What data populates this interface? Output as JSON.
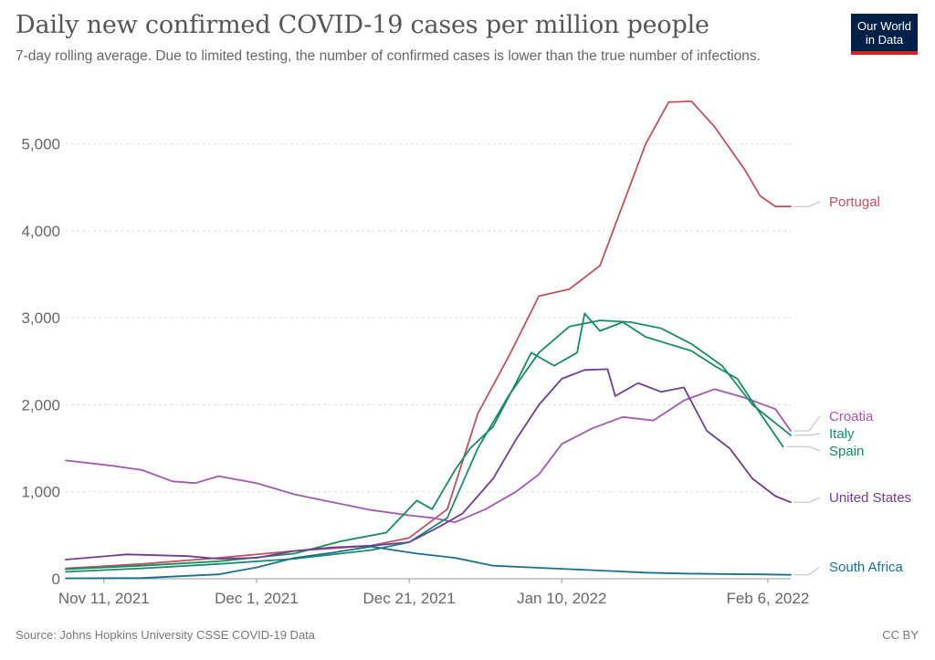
{
  "title": "Daily new confirmed COVID-19 cases per million people",
  "subtitle": "7-day rolling average. Due to limited testing, the number of confirmed cases is lower than the true number of infections.",
  "logo": {
    "line1": "Our World",
    "line2": "in Data",
    "bg": "#002147",
    "accent": "#ce261e"
  },
  "footer": {
    "source": "Source: Johns Hopkins University CSSE COVID-19 Data",
    "license": "CC BY"
  },
  "chart_data": {
    "type": "line",
    "x_unit": "date",
    "x_range": [
      "2021-11-06",
      "2022-02-09"
    ],
    "ylim": [
      0,
      5500
    ],
    "grid": true,
    "legend": "right, labels at line ends",
    "x_ticks": [
      {
        "date": "2021-11-11",
        "label": "Nov 11, 2021"
      },
      {
        "date": "2021-12-01",
        "label": "Dec 1, 2021"
      },
      {
        "date": "2021-12-21",
        "label": "Dec 21, 2021"
      },
      {
        "date": "2022-01-10",
        "label": "Jan 10, 2022"
      },
      {
        "date": "2022-02-06",
        "label": "Feb 6, 2022"
      }
    ],
    "y_ticks": [
      {
        "value": 0,
        "label": "0"
      },
      {
        "value": 1000,
        "label": "1,000"
      },
      {
        "value": 2000,
        "label": "2,000"
      },
      {
        "value": 3000,
        "label": "3,000"
      },
      {
        "value": 4000,
        "label": "4,000"
      },
      {
        "value": 5000,
        "label": "5,000"
      }
    ],
    "series": [
      {
        "name": "Portugal",
        "color": "#c0505f",
        "x": [
          "2021-11-06",
          "2021-11-16",
          "2021-11-26",
          "2021-12-06",
          "2021-12-16",
          "2021-12-21",
          "2021-12-26",
          "2021-12-30",
          "2022-01-03",
          "2022-01-07",
          "2022-01-11",
          "2022-01-15",
          "2022-01-18",
          "2022-01-21",
          "2022-01-24",
          "2022-01-27",
          "2022-01-30",
          "2022-02-01",
          "2022-02-03",
          "2022-02-05",
          "2022-02-07",
          "2022-02-09"
        ],
        "values": [
          120,
          170,
          240,
          320,
          380,
          470,
          800,
          1900,
          2550,
          3250,
          3330,
          3600,
          4300,
          5000,
          5480,
          5490,
          5200,
          4950,
          4700,
          4400,
          4280,
          4280
        ]
      },
      {
        "name": "Croatia",
        "color": "#a258b0",
        "x": [
          "2021-11-06",
          "2021-11-12",
          "2021-11-16",
          "2021-11-20",
          "2021-11-23",
          "2021-11-26",
          "2021-12-01",
          "2021-12-06",
          "2021-12-11",
          "2021-12-16",
          "2021-12-21",
          "2021-12-24",
          "2021-12-27",
          "2021-12-31",
          "2022-01-04",
          "2022-01-07",
          "2022-01-10",
          "2022-01-14",
          "2022-01-18",
          "2022-01-22",
          "2022-01-26",
          "2022-01-30",
          "2022-02-03",
          "2022-02-07",
          "2022-02-09"
        ],
        "values": [
          1360,
          1300,
          1250,
          1120,
          1100,
          1180,
          1100,
          970,
          880,
          790,
          730,
          700,
          650,
          800,
          1000,
          1200,
          1550,
          1730,
          1860,
          1820,
          2050,
          2180,
          2080,
          1950,
          1700
        ]
      },
      {
        "name": "Italy",
        "color": "#1a8a6e",
        "x": [
          "2021-11-06",
          "2021-11-16",
          "2021-11-26",
          "2021-12-06",
          "2021-12-16",
          "2021-12-21",
          "2021-12-26",
          "2021-12-30",
          "2022-01-03",
          "2022-01-07",
          "2022-01-11",
          "2022-01-15",
          "2022-01-19",
          "2022-01-23",
          "2022-01-27",
          "2022-01-31",
          "2022-02-04",
          "2022-02-09"
        ],
        "values": [
          80,
          120,
          170,
          230,
          330,
          420,
          700,
          1500,
          2100,
          2600,
          2900,
          2970,
          2950,
          2880,
          2700,
          2450,
          2000,
          1650
        ]
      },
      {
        "name": "Spain",
        "color": "#168b5c",
        "x": [
          "2021-11-06",
          "2021-11-16",
          "2021-11-26",
          "2021-12-06",
          "2021-12-12",
          "2021-12-18",
          "2021-12-22",
          "2021-12-24",
          "2021-12-27",
          "2021-12-29",
          "2022-01-01",
          "2022-01-04",
          "2022-01-06",
          "2022-01-09",
          "2022-01-12",
          "2022-01-13",
          "2022-01-15",
          "2022-01-18",
          "2022-01-21",
          "2022-01-24",
          "2022-01-27",
          "2022-01-30",
          "2022-02-02",
          "2022-02-05",
          "2022-02-08"
        ],
        "values": [
          110,
          150,
          200,
          290,
          430,
          530,
          900,
          800,
          1250,
          1500,
          1750,
          2250,
          2600,
          2450,
          2600,
          3050,
          2850,
          2950,
          2780,
          2700,
          2620,
          2450,
          2300,
          1900,
          1520
        ]
      },
      {
        "name": "United States",
        "color": "#6d3e91",
        "x": [
          "2021-11-06",
          "2021-11-14",
          "2021-11-22",
          "2021-11-26",
          "2021-12-01",
          "2021-12-06",
          "2021-12-11",
          "2021-12-16",
          "2021-12-21",
          "2021-12-25",
          "2021-12-28",
          "2022-01-01",
          "2022-01-04",
          "2022-01-07",
          "2022-01-10",
          "2022-01-13",
          "2022-01-16",
          "2022-01-17",
          "2022-01-20",
          "2022-01-23",
          "2022-01-26",
          "2022-01-29",
          "2022-02-01",
          "2022-02-04",
          "2022-02-07",
          "2022-02-09"
        ],
        "values": [
          220,
          280,
          260,
          230,
          240,
          320,
          360,
          380,
          420,
          600,
          750,
          1150,
          1600,
          2000,
          2300,
          2400,
          2410,
          2100,
          2250,
          2150,
          2200,
          1700,
          1500,
          1150,
          950,
          880
        ]
      },
      {
        "name": "South Africa",
        "color": "#1a6f8e",
        "x": [
          "2021-11-06",
          "2021-11-16",
          "2021-11-26",
          "2021-12-01",
          "2021-12-06",
          "2021-12-11",
          "2021-12-16",
          "2021-12-19",
          "2021-12-22",
          "2021-12-27",
          "2022-01-01",
          "2022-01-06",
          "2022-01-11",
          "2022-01-16",
          "2022-01-21",
          "2022-01-26",
          "2022-01-31",
          "2022-02-05",
          "2022-02-09"
        ],
        "values": [
          5,
          8,
          50,
          130,
          240,
          300,
          370,
          330,
          290,
          240,
          150,
          130,
          110,
          90,
          70,
          60,
          55,
          50,
          45
        ]
      }
    ]
  }
}
